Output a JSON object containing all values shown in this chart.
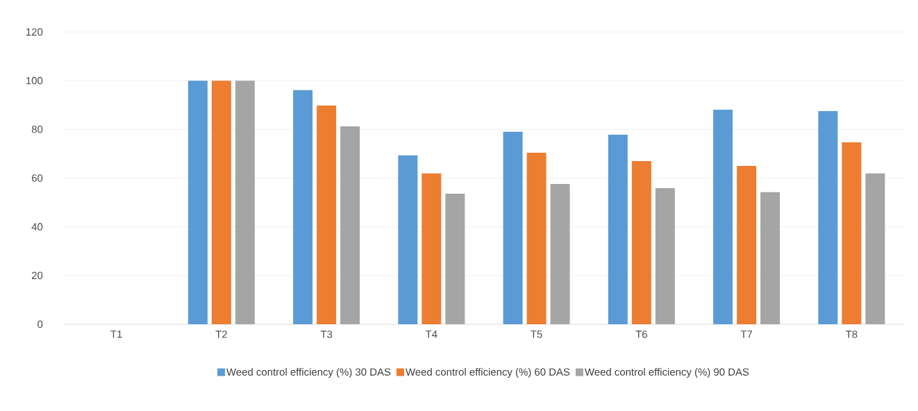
{
  "chart_data": {
    "type": "bar",
    "categories": [
      "T1",
      "T2",
      "T3",
      "T4",
      "T5",
      "T6",
      "T7",
      "T8"
    ],
    "series": [
      {
        "name": "Weed control efficiency (%) 30 DAS",
        "color": "#5b9bd5",
        "values": [
          0,
          100,
          96.1,
          69.3,
          79.0,
          77.8,
          88.1,
          87.5
        ]
      },
      {
        "name": "Weed control efficiency (%) 60 DAS",
        "color": "#ed7d31",
        "values": [
          0,
          100,
          89.8,
          61.9,
          70.4,
          67.0,
          65.0,
          74.7
        ]
      },
      {
        "name": "Weed control efficiency (%) 90 DAS",
        "color": "#a5a5a5",
        "values": [
          0,
          100,
          81.2,
          53.6,
          57.6,
          55.9,
          54.2,
          61.9
        ]
      }
    ],
    "ylim": [
      0,
      120
    ],
    "yticks": [
      0,
      20,
      40,
      60,
      80,
      100,
      120
    ],
    "grid": "y",
    "legend": "bottom"
  }
}
